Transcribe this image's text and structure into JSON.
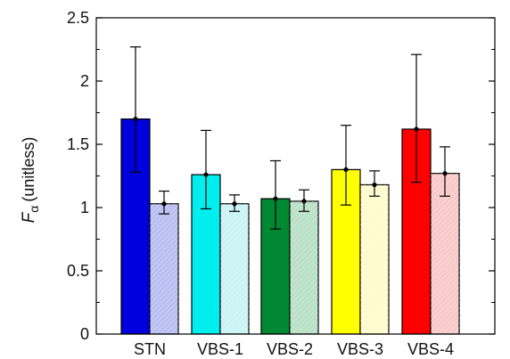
{
  "chart_data": {
    "type": "bar",
    "title": "",
    "xlabel": "",
    "ylabel": "F",
    "ylabel_subscript": "α",
    "ylabel_unit": "(unitless)",
    "ylim": [
      0,
      2.5
    ],
    "yticks": [
      0,
      0.5,
      1,
      1.5,
      2,
      2.5
    ],
    "ytick_labels": [
      "0",
      "0.5",
      "1",
      "1.5",
      "2",
      "2.5"
    ],
    "categories": [
      "STN",
      "VBS-1",
      "VBS-2",
      "VBS-3",
      "VBS-4"
    ],
    "series": [
      {
        "values": [
          1.7,
          1.26,
          1.07,
          1.3,
          1.62
        ],
        "error_low": [
          1.28,
          0.99,
          0.83,
          1.02,
          1.2
        ],
        "error_high": [
          2.27,
          1.61,
          1.37,
          1.65,
          2.21
        ],
        "pattern": "solid",
        "colors": [
          "#0000dd",
          "#00eeee",
          "#008833",
          "#ffff00",
          "#ff0000"
        ]
      },
      {
        "values": [
          1.03,
          1.03,
          1.05,
          1.18,
          1.27
        ],
        "error_low": [
          0.95,
          0.97,
          0.97,
          1.09,
          1.09
        ],
        "error_high": [
          1.13,
          1.1,
          1.14,
          1.29,
          1.48
        ],
        "pattern": "hatched",
        "colors": [
          "#b8bdf2",
          "#c8f4f4",
          "#b8e0c4",
          "#fffbcc",
          "#f8c8c8"
        ]
      }
    ],
    "grid": false,
    "legend": "none"
  }
}
